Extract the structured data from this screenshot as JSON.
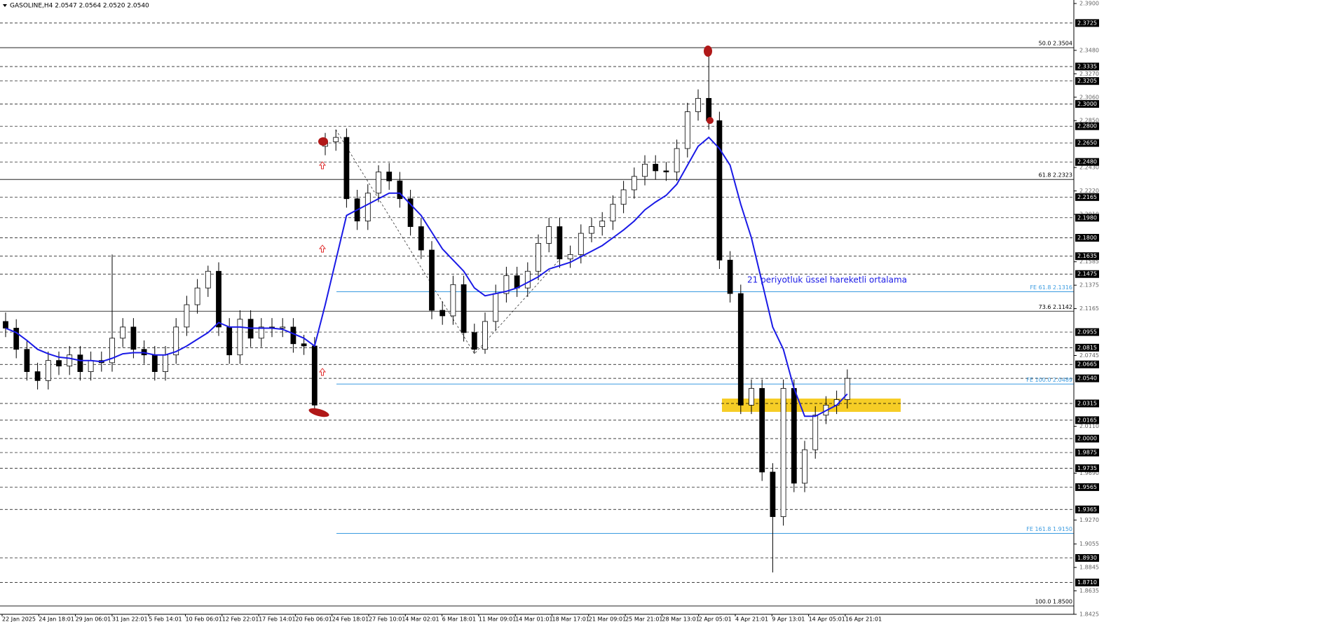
{
  "chart_data": {
    "type": "candlestick",
    "title": "GASOLINE,H4  2.0547 2.0564 2.0520 2.0540",
    "annotation": "21 periyotluk üssel hareketli ortalama",
    "x_labels": [
      "22 Jan 2025",
      "24 Jan 18:01",
      "29 Jan 06:01",
      "31 Jan 22:01",
      "5 Feb 14:01",
      "10 Feb 06:01",
      "12 Feb 22:01",
      "17 Feb 14:01",
      "20 Feb 06:01",
      "24 Feb 18:01",
      "27 Feb 10:01",
      "4 Mar 02:01",
      "6 Mar 18:01",
      "11 Mar 09:01",
      "14 Mar 01:01",
      "18 Mar 17:01",
      "21 Mar 09:01",
      "25 Mar 21:01",
      "28 Mar 13:01",
      "2 Apr 05:01",
      "4 Apr 21:01",
      "9 Apr 13:01",
      "14 Apr 05:01",
      "16 Apr 21:01"
    ],
    "open": [
      2.105,
      2.099,
      2.08,
      2.06,
      2.052,
      2.07,
      2.065,
      2.075,
      2.06,
      2.07,
      2.068,
      2.09,
      2.1,
      2.08,
      2.075,
      2.06,
      2.075,
      2.1,
      2.12,
      2.135,
      2.15,
      2.1,
      2.075,
      2.107,
      2.09,
      2.1,
      2.099,
      2.1,
      2.085,
      2.083,
      2.262,
      2.266,
      2.27,
      2.215,
      2.195,
      2.22,
      2.239,
      2.231,
      2.215,
      2.19,
      2.169,
      2.115,
      2.11,
      2.138,
      2.095,
      2.08,
      2.105,
      2.13,
      2.146,
      2.135,
      2.15,
      2.175,
      2.19,
      2.161,
      2.165,
      2.184,
      2.19,
      2.195,
      2.21,
      2.223,
      2.235,
      2.246,
      2.24,
      2.239,
      2.26,
      2.293,
      2.305,
      2.285,
      2.16,
      2.13,
      2.03,
      2.045,
      1.97,
      1.93,
      2.045,
      1.96,
      1.99,
      2.021,
      2.03,
      2.035
    ],
    "high": [
      2.113,
      2.107,
      2.088,
      2.068,
      2.078,
      2.078,
      2.083,
      2.083,
      2.078,
      2.078,
      2.165,
      2.108,
      2.108,
      2.088,
      2.083,
      2.083,
      2.108,
      2.128,
      2.143,
      2.155,
      2.158,
      2.108,
      2.115,
      2.115,
      2.108,
      2.108,
      2.108,
      2.108,
      2.093,
      2.091,
      2.274,
      2.277,
      2.278,
      2.223,
      2.228,
      2.245,
      2.247,
      2.239,
      2.223,
      2.198,
      2.177,
      2.123,
      2.146,
      2.146,
      2.103,
      2.113,
      2.138,
      2.154,
      2.154,
      2.158,
      2.183,
      2.198,
      2.198,
      2.173,
      2.192,
      2.198,
      2.203,
      2.218,
      2.231,
      2.243,
      2.254,
      2.254,
      2.248,
      2.268,
      2.301,
      2.313,
      2.347,
      2.293,
      2.168,
      2.138,
      2.053,
      2.053,
      1.978,
      2.053,
      2.053,
      1.998,
      2.029,
      2.038,
      2.043,
      2.062
    ],
    "low": [
      2.091,
      2.072,
      2.052,
      2.044,
      2.044,
      2.057,
      2.057,
      2.052,
      2.052,
      2.06,
      2.06,
      2.082,
      2.072,
      2.067,
      2.052,
      2.052,
      2.067,
      2.092,
      2.112,
      2.127,
      2.092,
      2.067,
      2.067,
      2.082,
      2.082,
      2.091,
      2.091,
      2.077,
      2.075,
      2.025,
      2.254,
      2.258,
      2.207,
      2.187,
      2.187,
      2.212,
      2.223,
      2.207,
      2.182,
      2.161,
      2.107,
      2.102,
      2.102,
      2.087,
      2.076,
      2.076,
      2.097,
      2.122,
      2.127,
      2.127,
      2.142,
      2.167,
      2.153,
      2.153,
      2.157,
      2.176,
      2.182,
      2.187,
      2.202,
      2.215,
      2.227,
      2.232,
      2.231,
      2.231,
      2.252,
      2.285,
      2.277,
      2.152,
      2.122,
      2.022,
      2.022,
      1.962,
      1.88,
      1.922,
      1.952,
      1.952,
      1.982,
      2.013,
      2.022,
      2.027
    ],
    "close": [
      2.099,
      2.08,
      2.06,
      2.052,
      2.07,
      2.065,
      2.075,
      2.06,
      2.07,
      2.068,
      2.09,
      2.1,
      2.08,
      2.075,
      2.06,
      2.075,
      2.1,
      2.12,
      2.135,
      2.15,
      2.1,
      2.075,
      2.107,
      2.09,
      2.1,
      2.099,
      2.1,
      2.085,
      2.083,
      2.03,
      2.266,
      2.27,
      2.215,
      2.195,
      2.22,
      2.239,
      2.231,
      2.215,
      2.19,
      2.169,
      2.115,
      2.11,
      2.138,
      2.095,
      2.08,
      2.105,
      2.13,
      2.146,
      2.135,
      2.15,
      2.175,
      2.19,
      2.161,
      2.165,
      2.184,
      2.19,
      2.195,
      2.21,
      2.223,
      2.235,
      2.246,
      2.24,
      2.239,
      2.26,
      2.293,
      2.305,
      2.285,
      2.16,
      2.13,
      2.03,
      2.045,
      1.97,
      1.93,
      2.045,
      1.96,
      1.99,
      2.021,
      2.03,
      2.035,
      2.054
    ],
    "ema_values": [
      2.099,
      2.095,
      2.088,
      2.08,
      2.076,
      2.073,
      2.072,
      2.07,
      2.07,
      2.069,
      2.072,
      2.076,
      2.077,
      2.077,
      2.075,
      2.075,
      2.078,
      2.083,
      2.089,
      2.095,
      2.104,
      2.1,
      2.1,
      2.099,
      2.099,
      2.099,
      2.098,
      2.094,
      2.09,
      2.083,
      2.12,
      2.16,
      2.2,
      2.205,
      2.21,
      2.215,
      2.22,
      2.22,
      2.21,
      2.2,
      2.185,
      2.17,
      2.16,
      2.15,
      2.135,
      2.128,
      2.13,
      2.132,
      2.135,
      2.14,
      2.145,
      2.152,
      2.155,
      2.158,
      2.163,
      2.168,
      2.173,
      2.18,
      2.187,
      2.195,
      2.205,
      2.212,
      2.218,
      2.228,
      2.245,
      2.262,
      2.27,
      2.26,
      2.245,
      2.21,
      2.18,
      2.14,
      2.1,
      2.08,
      2.045,
      2.02,
      2.02,
      2.025,
      2.03,
      2.04
    ],
    "ema_color": "#1a1ae6",
    "candle_color": "#000000",
    "fe_color": "#3a9be0",
    "ylim": [
      1.8425,
      2.39
    ],
    "yticks": [
      {
        "value": 2.39,
        "label": "2.3900"
      },
      {
        "value": 2.348,
        "label": "2.3480"
      },
      {
        "value": 2.327,
        "label": "2.3270"
      },
      {
        "value": 2.306,
        "label": "2.3060"
      },
      {
        "value": 2.285,
        "label": "2.2850"
      },
      {
        "value": 2.243,
        "label": "2.2430"
      },
      {
        "value": 2.222,
        "label": "2.2220"
      },
      {
        "value": 2.201,
        "label": "2.2010"
      },
      {
        "value": 2.1585,
        "label": "2.1585"
      },
      {
        "value": 2.1375,
        "label": "2.1375"
      },
      {
        "value": 2.1165,
        "label": "2.1165"
      },
      {
        "value": 2.0745,
        "label": "2.0745"
      },
      {
        "value": 2.011,
        "label": "2.0110"
      },
      {
        "value": 1.969,
        "label": "1.9690"
      },
      {
        "value": 1.927,
        "label": "1.9270"
      },
      {
        "value": 1.9055,
        "label": "1.9055"
      },
      {
        "value": 1.8845,
        "label": "1.8845"
      },
      {
        "value": 1.8635,
        "label": "1.8635"
      },
      {
        "value": 1.8425,
        "label": "1.8425"
      }
    ],
    "levels": [
      {
        "value": 2.3725,
        "label": "2.3725"
      },
      {
        "value": 2.3335,
        "label": "2.3335"
      },
      {
        "value": 2.3205,
        "label": "2.3205"
      },
      {
        "value": 2.3,
        "label": "2.3000"
      },
      {
        "value": 2.28,
        "label": "2.2800"
      },
      {
        "value": 2.265,
        "label": "2.2650"
      },
      {
        "value": 2.248,
        "label": "2.2480"
      },
      {
        "value": 2.2165,
        "label": "2.2165"
      },
      {
        "value": 2.198,
        "label": "2.1980"
      },
      {
        "value": 2.18,
        "label": "2.1800"
      },
      {
        "value": 2.1635,
        "label": "2.1635"
      },
      {
        "value": 2.1475,
        "label": "2.1475"
      },
      {
        "value": 2.0955,
        "label": "2.0955"
      },
      {
        "value": 2.0815,
        "label": "2.0815"
      },
      {
        "value": 2.0665,
        "label": "2.0665"
      },
      {
        "value": 2.054,
        "label": "2.0540"
      },
      {
        "value": 2.0315,
        "label": "2.0315"
      },
      {
        "value": 2.0165,
        "label": "2.0165"
      },
      {
        "value": 2,
        "label": "2.0000"
      },
      {
        "value": 1.9875,
        "label": "1.9875"
      },
      {
        "value": 1.9735,
        "label": "1.9735"
      },
      {
        "value": 1.9565,
        "label": "1.9565"
      },
      {
        "value": 1.9365,
        "label": "1.9365"
      },
      {
        "value": 1.893,
        "label": "1.8930"
      },
      {
        "value": 1.871,
        "label": "1.8710"
      }
    ],
    "fib_lines": [
      {
        "value": 2.3504,
        "label": "50.0 2.3504"
      },
      {
        "value": 2.2323,
        "label": "61.8 2.2323"
      },
      {
        "value": 2.1142,
        "label": "73.6 2.1142"
      },
      {
        "value": 1.85,
        "label": "100.0 1.8500"
      }
    ],
    "fe_lines": [
      {
        "value": 2.1316,
        "label": "FE 61.8 2.1316"
      },
      {
        "value": 2.0489,
        "label": "FE 100.0 2.0489"
      },
      {
        "value": 1.915,
        "label": "FE 161.8 1.9150"
      }
    ]
  }
}
